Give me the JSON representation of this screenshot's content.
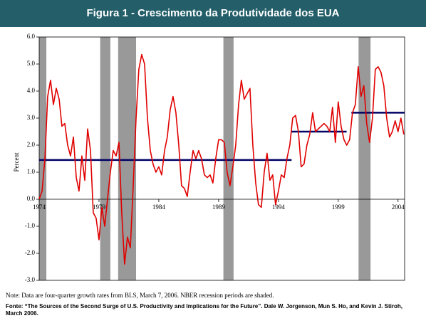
{
  "chart_data": {
    "type": "line",
    "title": "Figura 1 - Crescimento da Produtividade dos EUA",
    "y_label": "Percent",
    "note": "Note: Data are four-quarter growth rates from BLS, March 7, 2006.  NBER recession periods are shaded.",
    "source": "Fonte: “The Sources of the Second Surge of U.S. Productivity and Implications for the Future”. Dale W. Jorgenson, Mun S. Ho, and Kevin J. Stiroh, March 2006.",
    "xlim": [
      1974,
      2004.55
    ],
    "xticks": [
      1974,
      1979,
      1984,
      1989,
      1994,
      1999,
      2004
    ],
    "ylim": [
      -3,
      6
    ],
    "yticks": [
      {
        "value": 6,
        "label": "6.0"
      },
      {
        "value": 5,
        "label": "5.0"
      },
      {
        "value": 4,
        "label": "4.0"
      },
      {
        "value": 3,
        "label": "3.0"
      },
      {
        "value": 2,
        "label": "2.0"
      },
      {
        "value": 1,
        "label": "1.0"
      },
      {
        "value": 0,
        "label": "0.0"
      },
      {
        "value": -1,
        "label": "-1.0"
      },
      {
        "value": -2,
        "label": "-2.0"
      },
      {
        "value": -3,
        "label": "-3.0"
      }
    ],
    "recessions": [
      [
        1974,
        1974.6
      ],
      [
        1979.1,
        1979.95
      ],
      [
        1980.6,
        1982.1
      ],
      [
        1989.4,
        1990.25
      ],
      [
        2000.7,
        2001.7
      ]
    ],
    "recession_color": "#999999",
    "averages": [
      {
        "start": 1974,
        "end": 1995.1,
        "value": 1.45
      },
      {
        "start": 1995.1,
        "end": 1999.7,
        "value": 2.5
      },
      {
        "start": 2000.1,
        "end": 2004.55,
        "value": 3.2
      }
    ],
    "average_color": "#000066",
    "series": [
      {
        "color": "#e00000",
        "x": [
          1974.0,
          1974.24,
          1974.48,
          1974.71,
          1974.95,
          1975.19,
          1975.43,
          1975.67,
          1975.9,
          1976.14,
          1976.38,
          1976.62,
          1976.86,
          1977.1,
          1977.33,
          1977.57,
          1977.81,
          1978.05,
          1978.29,
          1978.52,
          1978.76,
          1979.0,
          1979.24,
          1979.48,
          1979.71,
          1979.95,
          1980.19,
          1980.43,
          1980.67,
          1980.9,
          1981.14,
          1981.38,
          1981.62,
          1981.86,
          1982.1,
          1982.33,
          1982.57,
          1982.81,
          1983.05,
          1983.29,
          1983.52,
          1983.76,
          1984.0,
          1984.24,
          1984.48,
          1984.71,
          1984.95,
          1985.19,
          1985.43,
          1985.67,
          1985.9,
          1986.14,
          1986.38,
          1986.62,
          1986.86,
          1987.1,
          1987.33,
          1987.57,
          1987.81,
          1988.05,
          1988.29,
          1988.52,
          1988.76,
          1989.0,
          1989.24,
          1989.48,
          1989.71,
          1989.95,
          1990.19,
          1990.43,
          1990.67,
          1990.9,
          1991.14,
          1991.38,
          1991.62,
          1991.86,
          1992.1,
          1992.33,
          1992.57,
          1992.81,
          1993.05,
          1993.29,
          1993.52,
          1993.76,
          1994.0,
          1994.24,
          1994.48,
          1994.71,
          1994.95,
          1995.19,
          1995.43,
          1995.67,
          1995.9,
          1996.14,
          1996.38,
          1996.62,
          1996.86,
          1997.1,
          1997.33,
          1997.57,
          1997.81,
          1998.05,
          1998.29,
          1998.52,
          1998.76,
          1999.0,
          1999.24,
          1999.48,
          1999.71,
          1999.95,
          2000.19,
          2000.43,
          2000.67,
          2000.9,
          2001.14,
          2001.38,
          2001.62,
          2001.86,
          2002.1,
          2002.33,
          2002.57,
          2002.81,
          2003.05,
          2003.29,
          2003.52,
          2003.76,
          2004.0,
          2004.24,
          2004.48
        ],
        "values": [
          0.0,
          0.3,
          1.5,
          3.8,
          4.4,
          3.5,
          4.1,
          3.7,
          2.7,
          2.8,
          2.0,
          1.6,
          2.3,
          0.8,
          0.3,
          1.6,
          0.7,
          2.6,
          1.8,
          -0.5,
          -0.7,
          -1.5,
          -0.3,
          -1.0,
          0.0,
          1.0,
          1.8,
          1.6,
          2.1,
          -0.5,
          -2.4,
          -1.4,
          -1.8,
          0.5,
          3.0,
          4.8,
          5.35,
          5.0,
          3.0,
          1.8,
          1.3,
          1.0,
          1.2,
          0.9,
          1.8,
          2.3,
          3.3,
          3.8,
          3.2,
          2.0,
          0.5,
          0.4,
          0.1,
          1.0,
          1.8,
          1.5,
          1.8,
          1.5,
          0.9,
          0.8,
          0.9,
          0.6,
          1.5,
          2.2,
          2.2,
          2.1,
          1.0,
          0.5,
          1.2,
          2.0,
          3.5,
          4.4,
          3.7,
          3.9,
          4.1,
          2.0,
          0.6,
          -0.2,
          -0.3,
          1.0,
          1.7,
          0.7,
          0.9,
          -0.2,
          0.3,
          0.9,
          0.8,
          1.5,
          2.0,
          3.0,
          3.1,
          2.5,
          1.2,
          1.3,
          2.0,
          2.4,
          3.2,
          2.5,
          2.6,
          2.7,
          2.8,
          2.7,
          2.5,
          3.4,
          2.1,
          3.6,
          2.7,
          2.2,
          2.0,
          2.2,
          3.2,
          3.5,
          4.9,
          3.8,
          4.2,
          2.8,
          2.1,
          3.0,
          4.8,
          4.9,
          4.7,
          4.2,
          3.0,
          2.3,
          2.5,
          2.9,
          2.5,
          3.0,
          2.4
        ]
      }
    ]
  }
}
